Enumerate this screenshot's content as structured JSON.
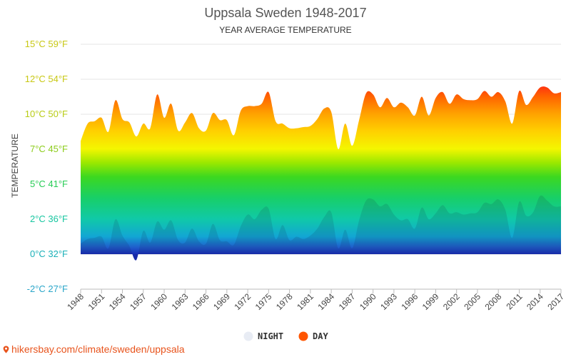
{
  "chart_data": {
    "type": "area",
    "title": "Uppsala Sweden 1948-2017",
    "subtitle": "YEAR AVERAGE TEMPERATURE",
    "ylabel": "TEMPERATURE",
    "x": [
      1948,
      1949,
      1950,
      1951,
      1952,
      1953,
      1954,
      1955,
      1956,
      1957,
      1958,
      1959,
      1960,
      1961,
      1962,
      1963,
      1964,
      1965,
      1966,
      1967,
      1968,
      1969,
      1970,
      1971,
      1972,
      1973,
      1974,
      1975,
      1976,
      1977,
      1978,
      1979,
      1980,
      1981,
      1982,
      1983,
      1984,
      1985,
      1986,
      1987,
      1988,
      1989,
      1990,
      1991,
      1992,
      1993,
      1994,
      1995,
      1996,
      1997,
      1998,
      1999,
      2000,
      2001,
      2002,
      2003,
      2004,
      2005,
      2006,
      2007,
      2008,
      2009,
      2010,
      2011,
      2012,
      2013,
      2014,
      2015,
      2016,
      2017
    ],
    "x_tick_labels": [
      "1948",
      "1951",
      "1954",
      "1957",
      "1960",
      "1963",
      "1966",
      "1969",
      "1972",
      "1975",
      "1978",
      "1981",
      "1984",
      "1987",
      "1990",
      "1993",
      "1996",
      "1999",
      "2002",
      "2005",
      "2008",
      "2011",
      "2014",
      "2017"
    ],
    "y_ticks": [
      {
        "value": -3,
        "label": "-2°C 27°F",
        "color": "#2aa6c9"
      },
      {
        "value": 0,
        "label": "0°C 32°F",
        "color": "#1ab0b8"
      },
      {
        "value": 3,
        "label": "2°C 36°F",
        "color": "#17c6a0"
      },
      {
        "value": 6,
        "label": "5°C 41°F",
        "color": "#26cc55"
      },
      {
        "value": 9,
        "label": "7°C 45°F",
        "color": "#8ccc1a"
      },
      {
        "value": 12,
        "label": "10°C 50°F",
        "color": "#b8cc14"
      },
      {
        "value": 15,
        "label": "12°C 54°F",
        "color": "#c8c814"
      },
      {
        "value": 18,
        "label": "15°C 59°F",
        "color": "#c8c814"
      }
    ],
    "ylim": [
      -3,
      18
    ],
    "grid": true,
    "legend_position": "bottom-center",
    "series": [
      {
        "name": "DAY",
        "color": "#ff5500",
        "values": [
          9.7,
          11.2,
          11.4,
          11.7,
          10.5,
          13.2,
          11.6,
          11.3,
          10.1,
          11.2,
          10.8,
          13.7,
          11.7,
          12.9,
          10.6,
          11.3,
          12.1,
          10.8,
          10.6,
          12.1,
          11.5,
          11.5,
          10.2,
          12.3,
          12.7,
          12.7,
          12.9,
          13.9,
          11.4,
          11.2,
          10.8,
          10.8,
          10.9,
          11.0,
          11.6,
          12.5,
          12.2,
          9.0,
          11.2,
          9.3,
          11.5,
          13.8,
          13.7,
          12.6,
          13.4,
          12.6,
          13.0,
          12.6,
          11.9,
          13.5,
          11.9,
          13.4,
          13.9,
          12.9,
          13.7,
          13.3,
          13.2,
          13.3,
          14.0,
          13.5,
          13.9,
          13.1,
          11.2,
          14.0,
          12.8,
          13.5,
          14.3,
          14.3,
          13.8,
          13.9
        ]
      },
      {
        "name": "NIGHT",
        "color": "#e8ecf4",
        "values": [
          0.9,
          1.3,
          1.4,
          1.5,
          0.5,
          3.0,
          1.6,
          0.7,
          -0.5,
          2.0,
          1.0,
          2.8,
          2.1,
          2.9,
          1.2,
          1.0,
          2.2,
          1.1,
          0.9,
          2.6,
          1.2,
          1.1,
          0.8,
          2.4,
          3.4,
          3.0,
          3.8,
          3.9,
          1.3,
          2.5,
          1.2,
          1.5,
          1.3,
          1.6,
          2.2,
          3.2,
          3.6,
          0.5,
          2.1,
          0.5,
          2.9,
          4.6,
          4.7,
          4.1,
          4.3,
          3.4,
          2.9,
          3.0,
          2.2,
          4.0,
          3.0,
          3.5,
          4.2,
          3.5,
          3.6,
          3.4,
          3.5,
          3.6,
          4.4,
          4.3,
          4.7,
          3.8,
          1.4,
          4.5,
          3.3,
          3.6,
          5.0,
          4.6,
          4.1,
          4.1
        ]
      }
    ]
  },
  "legend": [
    {
      "label": "NIGHT",
      "color": "#e8ecf4"
    },
    {
      "label": "DAY",
      "color": "#ff5500"
    }
  ],
  "footer": {
    "url_text": "hikersbay.com/climate/sweden/uppsala",
    "pin_icon": "map-pin-icon"
  }
}
